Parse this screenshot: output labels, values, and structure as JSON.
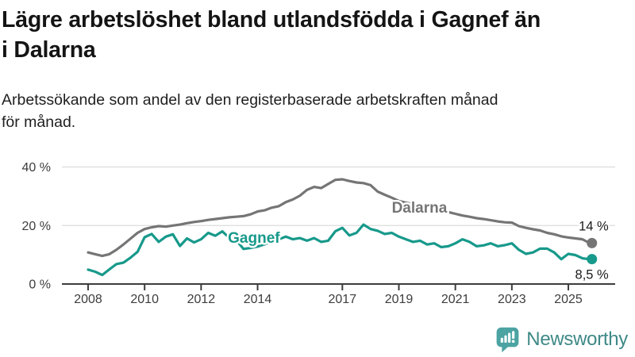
{
  "header": {
    "title_lines": [
      "Lägre arbetslöshet bland utlandsfödda i Gagnef än",
      "i Dalarna"
    ],
    "subtitle_lines": [
      "Arbetssökande som andel av den registerbaserade arbetskraften månad",
      "för månad."
    ]
  },
  "chart_data": {
    "type": "line",
    "title": "Lägre arbetslöshet bland utlandsfödda i Gagnef än i Dalarna",
    "subtitle": "Arbetssökande som andel av den registerbaserade arbetskraften månad för månad.",
    "xlabel": "",
    "ylabel": "",
    "grid": "horizontal",
    "legend_position": "inline-labels",
    "xlim": [
      2007.1,
      2026.7
    ],
    "ylim": [
      0,
      44
    ],
    "yticks": [
      {
        "value": 0,
        "label": "0 %"
      },
      {
        "value": 20,
        "label": "20 %"
      },
      {
        "value": 40,
        "label": "40 %"
      }
    ],
    "xticks": [
      {
        "value": 2008,
        "label": "2008"
      },
      {
        "value": 2010,
        "label": "2010"
      },
      {
        "value": 2012,
        "label": "2012"
      },
      {
        "value": 2014,
        "label": "2014"
      },
      {
        "value": 2017,
        "label": "2017"
      },
      {
        "value": 2019,
        "label": "2019"
      },
      {
        "value": 2021,
        "label": "2021"
      },
      {
        "value": 2023,
        "label": "2023"
      },
      {
        "value": 2025,
        "label": "2025"
      }
    ],
    "axis_color": "#3d3d3d",
    "gridline_color": "#dcdcdc",
    "x": [
      2008.0,
      2008.25,
      2008.5,
      2008.75,
      2009.0,
      2009.25,
      2009.5,
      2009.75,
      2010.0,
      2010.25,
      2010.5,
      2010.75,
      2011.0,
      2011.25,
      2011.5,
      2011.75,
      2012.0,
      2012.25,
      2012.5,
      2012.75,
      2013.0,
      2013.25,
      2013.5,
      2013.75,
      2014.0,
      2014.25,
      2014.5,
      2014.75,
      2015.0,
      2015.25,
      2015.5,
      2015.75,
      2016.0,
      2016.25,
      2016.5,
      2016.75,
      2017.0,
      2017.25,
      2017.5,
      2017.75,
      2018.0,
      2018.25,
      2018.5,
      2018.75,
      2019.0,
      2019.25,
      2019.5,
      2019.75,
      2020.0,
      2020.25,
      2020.5,
      2020.75,
      2021.0,
      2021.25,
      2021.5,
      2021.75,
      2022.0,
      2022.25,
      2022.5,
      2022.75,
      2023.0,
      2023.25,
      2023.5,
      2023.75,
      2024.0,
      2024.25,
      2024.5,
      2024.75,
      2025.0,
      2025.25,
      2025.5,
      2025.75
    ],
    "series": [
      {
        "name": "Dalarna",
        "color": "#757575",
        "end_label": "14 %",
        "end_value": 14.0,
        "label_anchor": {
          "year": 2018.75,
          "value": 24.4
        },
        "values": [
          10.8,
          10.2,
          9.6,
          10.2,
          11.7,
          13.5,
          15.5,
          17.5,
          18.8,
          19.4,
          19.8,
          19.6,
          20.0,
          20.3,
          20.8,
          21.2,
          21.5,
          21.9,
          22.2,
          22.5,
          22.8,
          23.0,
          23.2,
          23.8,
          24.8,
          25.2,
          26.1,
          26.6,
          28.0,
          28.9,
          30.2,
          32.2,
          33.2,
          32.8,
          34.2,
          35.6,
          35.8,
          35.2,
          34.7,
          34.5,
          33.8,
          31.6,
          30.5,
          29.5,
          28.4,
          27.8,
          27.3,
          26.8,
          26.2,
          25.7,
          25.2,
          24.6,
          24.0,
          23.4,
          23.0,
          22.5,
          22.2,
          21.8,
          21.4,
          21.1,
          21.0,
          19.8,
          19.2,
          18.7,
          18.3,
          17.5,
          17.0,
          16.3,
          15.9,
          15.6,
          15.3,
          14.0
        ]
      },
      {
        "name": "Gagnef",
        "color": "#17998B",
        "end_label": "8,5 %",
        "end_value": 8.5,
        "label_anchor": {
          "year": 2012.95,
          "value": 14.1
        },
        "values": [
          4.9,
          4.2,
          3.1,
          5.0,
          6.8,
          7.3,
          9.0,
          11.0,
          16.0,
          17.1,
          14.4,
          16.2,
          17.0,
          13.0,
          15.6,
          14.2,
          15.3,
          17.5,
          16.5,
          18.0,
          15.7,
          15.0,
          12.0,
          12.3,
          12.8,
          13.6,
          14.5,
          15.3,
          16.2,
          15.3,
          15.7,
          14.8,
          15.7,
          14.4,
          14.8,
          18.0,
          19.2,
          16.6,
          17.5,
          20.3,
          18.8,
          18.2,
          17.1,
          17.5,
          16.2,
          15.3,
          14.4,
          14.8,
          13.5,
          13.9,
          12.6,
          12.9,
          13.9,
          15.3,
          14.4,
          12.9,
          13.2,
          13.9,
          12.9,
          13.3,
          13.9,
          11.7,
          10.3,
          10.8,
          12.1,
          12.1,
          10.8,
          8.5,
          10.3,
          9.9,
          8.8,
          8.5
        ]
      }
    ],
    "end_dots": true,
    "value_label_color": "#1a1a1a"
  },
  "footer": {
    "brand": "Newsworthy",
    "brand_text_color": "#3E8987",
    "icon": "bar-chart-speech-bubble-icon",
    "icon_color": "#4BA3A2",
    "icon_glyph_color": "#ffffff"
  }
}
